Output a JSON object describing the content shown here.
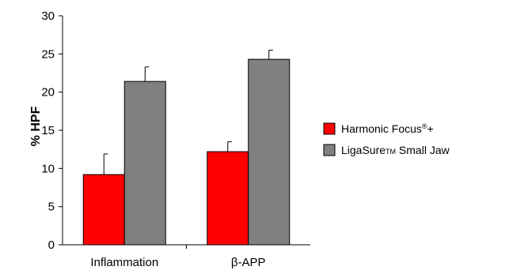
{
  "chart_data": {
    "type": "bar",
    "categories": [
      "Inflammation",
      "β-APP"
    ],
    "series": [
      {
        "name": "Harmonic Focus®+",
        "name_base": "Harmonic Focus",
        "name_sup": "®",
        "name_tail": "+",
        "color": "#ff0000",
        "values": [
          9.2,
          12.2
        ],
        "errors": [
          2.7,
          1.3
        ]
      },
      {
        "name": "LigaSure™ Small Jaw",
        "name_base": "LigaSure",
        "name_sup": "TM",
        "name_tail": " Small Jaw",
        "color": "#808080",
        "values": [
          21.4,
          24.3
        ],
        "errors": [
          1.9,
          1.2
        ]
      }
    ],
    "ylabel": "% HPF",
    "xlabel": "",
    "title": "",
    "ylim": [
      0,
      30
    ],
    "yticks": [
      0,
      5,
      10,
      15,
      20,
      25,
      30
    ],
    "grid": false,
    "legend_position": "right"
  }
}
